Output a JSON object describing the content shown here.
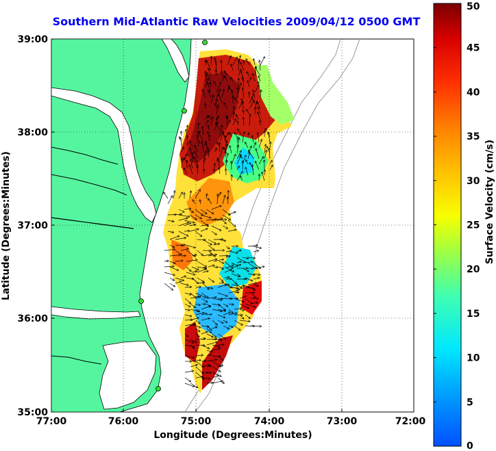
{
  "title": "Southern Mid-Atlantic Raw Velocities 2009/04/12 0500 GMT",
  "axes": {
    "x_label": "Longitude (Degrees:Minutes)",
    "y_label": "Latitude (Degrees:Minutes)",
    "x_ticks": [
      "77:00",
      "76:00",
      "75:00",
      "74:00",
      "73:00",
      "72:00"
    ],
    "y_ticks": [
      "39:00",
      "38:00",
      "37:00",
      "36:00",
      "35:00"
    ]
  },
  "colorbar": {
    "label": "Surface Velocity (cm/s)",
    "ticks": [
      "0",
      "5",
      "10",
      "15",
      "20",
      "25",
      "30",
      "35",
      "40",
      "45",
      "50"
    ],
    "min": 0,
    "max": 50
  },
  "colors": {
    "title": "#0000ee",
    "land": "#55f5a0",
    "station": "#33dd33"
  }
}
